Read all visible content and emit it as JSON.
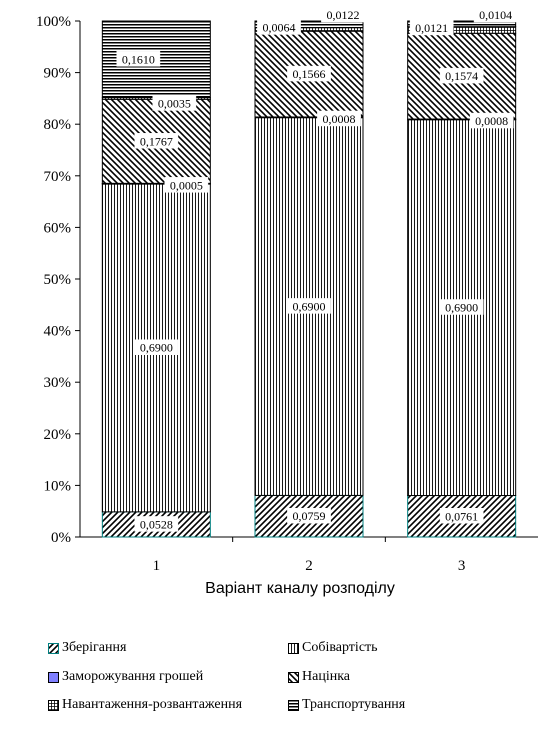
{
  "chart_data": {
    "type": "bar",
    "stacked": true,
    "normalized": true,
    "xlabel": "Варіант каналу розподілу",
    "ylabel": "",
    "ylim": [
      0,
      100
    ],
    "yticks": [
      "0%",
      "10%",
      "20%",
      "30%",
      "40%",
      "50%",
      "60%",
      "70%",
      "80%",
      "90%",
      "100%"
    ],
    "categories": [
      "1",
      "2",
      "3"
    ],
    "legend_position": "bottom",
    "series": [
      {
        "name": "Зберігання",
        "values": [
          0.0528,
          0.0759,
          0.0761
        ],
        "labels": [
          "0,0528",
          "0,0759",
          "0,0761"
        ],
        "pattern": "diag-up",
        "edge": "#008080"
      },
      {
        "name": "Собівартість",
        "values": [
          0.69,
          0.69,
          0.69
        ],
        "labels": [
          "0,6900",
          "0,6900",
          "0,6900"
        ],
        "pattern": "vertical",
        "edge": "#000000"
      },
      {
        "name": "Заморожування грошей",
        "values": [
          0.0005,
          0.0008,
          0.0008
        ],
        "labels": [
          "0,0005",
          "0,0008",
          "0,0008"
        ],
        "pattern": "solid",
        "edge": "#000000",
        "fill": "#8080ff"
      },
      {
        "name": "Націнка",
        "values": [
          0.1767,
          0.1566,
          0.1574
        ],
        "labels": [
          "0,1767",
          "0,1566",
          "0,1574"
        ],
        "pattern": "diag-down",
        "edge": "#000000"
      },
      {
        "name": "Навантаження-розвантаження",
        "values": [
          0.0035,
          0.0064,
          0.0121
        ],
        "labels": [
          "0,0035",
          "0,0064",
          "0,0121"
        ],
        "pattern": "grid",
        "edge": "#000000"
      },
      {
        "name": "Транспортування",
        "values": [
          0.161,
          0.0122,
          0.0104
        ],
        "labels": [
          "0,1610",
          "0,0122",
          "0,0104"
        ],
        "pattern": "horizontal",
        "edge": "#000000"
      }
    ]
  }
}
